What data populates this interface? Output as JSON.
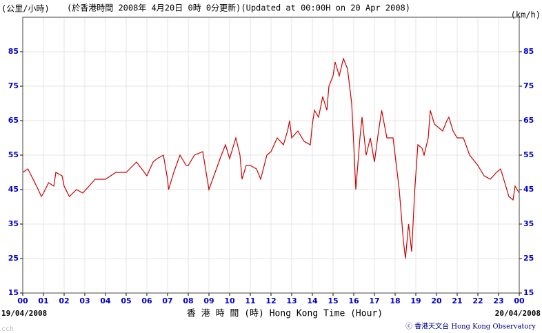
{
  "chart_data": {
    "type": "line",
    "title": "(於香港時間 2008年 4月20日 0時 0分更新)(Updated at 00:00H on 20 Apr 2008)",
    "y_label_left": "(公里/小時)",
    "y_label_right": "(km/h)",
    "x_label": "香 港 時 間 (時) Hong Kong Time (Hour)",
    "start_date": "19/04/2008",
    "end_date": "20/04/2008",
    "credit": "ⓒ 香港天文台 Hong Kong Observatory",
    "signature": "cch",
    "color": "#cc0000",
    "grid": true,
    "xlim": [
      0,
      24
    ],
    "ylim": [
      15,
      95
    ],
    "xticks": [
      {
        "value": 0,
        "label": "00"
      },
      {
        "value": 1,
        "label": "01"
      },
      {
        "value": 2,
        "label": "02"
      },
      {
        "value": 3,
        "label": "03"
      },
      {
        "value": 4,
        "label": "04"
      },
      {
        "value": 5,
        "label": "05"
      },
      {
        "value": 6,
        "label": "06"
      },
      {
        "value": 7,
        "label": "07"
      },
      {
        "value": 8,
        "label": "08"
      },
      {
        "value": 9,
        "label": "09"
      },
      {
        "value": 10,
        "label": "10"
      },
      {
        "value": 11,
        "label": "11"
      },
      {
        "value": 12,
        "label": "12"
      },
      {
        "value": 13,
        "label": "13"
      },
      {
        "value": 14,
        "label": "14"
      },
      {
        "value": 15,
        "label": "15"
      },
      {
        "value": 16,
        "label": "16"
      },
      {
        "value": 17,
        "label": "17"
      },
      {
        "value": 18,
        "label": "18"
      },
      {
        "value": 19,
        "label": "19"
      },
      {
        "value": 20,
        "label": "20"
      },
      {
        "value": 21,
        "label": "21"
      },
      {
        "value": 22,
        "label": "22"
      },
      {
        "value": 23,
        "label": "23"
      },
      {
        "value": 24,
        "label": "00"
      }
    ],
    "yticks": [
      15,
      25,
      35,
      45,
      55,
      65,
      75,
      85
    ],
    "x": [
      0,
      0.25,
      0.5,
      0.75,
      0.9,
      1,
      1.25,
      1.5,
      1.6,
      1.9,
      2,
      2.25,
      2.6,
      2.9,
      3.2,
      3.5,
      4,
      4.5,
      5,
      5.5,
      6,
      6.3,
      6.5,
      6.8,
      7,
      7.05,
      7.3,
      7.6,
      7.9,
      8,
      8.3,
      8.7,
      9,
      9.3,
      9.6,
      9.8,
      10,
      10.3,
      10.5,
      10.6,
      10.8,
      11,
      11.3,
      11.5,
      11.8,
      12,
      12.3,
      12.6,
      12.8,
      12.9,
      13,
      13.3,
      13.6,
      13.9,
      14,
      14.1,
      14.3,
      14.5,
      14.7,
      14.8,
      15,
      15.1,
      15.3,
      15.5,
      15.7,
      15.9,
      16,
      16.1,
      16.3,
      16.4,
      16.6,
      16.8,
      17,
      17.2,
      17.35,
      17.6,
      17.9,
      18,
      18.2,
      18.4,
      18.5,
      18.65,
      18.8,
      18.95,
      19.1,
      19.3,
      19.4,
      19.6,
      19.7,
      19.9,
      20.1,
      20.3,
      20.5,
      20.6,
      20.8,
      21,
      21.3,
      21.6,
      22,
      22.3,
      22.6,
      22.9,
      23.1,
      23.3,
      23.5,
      23.7,
      23.8,
      24
    ],
    "values": [
      50,
      51,
      48,
      45,
      43,
      44,
      47,
      46,
      50,
      49,
      46,
      43,
      45,
      44,
      46,
      48,
      48,
      50,
      50,
      53,
      49,
      53,
      54,
      55,
      48,
      45,
      50,
      55,
      52,
      52,
      55,
      56,
      45,
      50,
      55,
      58,
      54,
      60,
      55,
      48,
      52,
      52,
      51,
      48,
      55,
      56,
      60,
      58,
      62,
      65,
      60,
      62,
      59,
      58,
      64,
      68,
      66,
      72,
      68,
      75,
      78,
      82,
      78,
      83,
      80,
      70,
      58,
      45,
      60,
      66,
      55,
      60,
      53,
      62,
      68,
      60,
      60,
      55,
      45,
      30,
      25,
      35,
      27,
      45,
      58,
      57,
      55,
      60,
      68,
      64,
      63,
      62,
      65,
      66,
      62,
      60,
      60,
      55,
      52,
      49,
      48,
      50,
      51,
      47,
      43,
      42,
      46,
      44
    ]
  }
}
